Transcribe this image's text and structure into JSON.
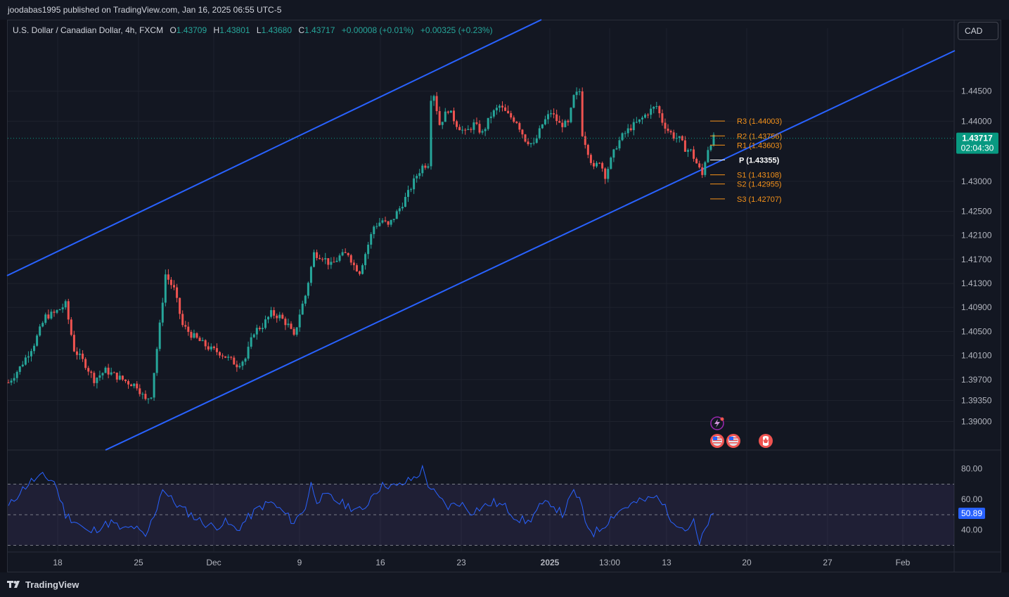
{
  "header": {
    "published": "joodabas1995 published on TradingView.com, Jan 16, 2025 06:55 UTC-5"
  },
  "legend": {
    "symbol": "U.S. Dollar / Canadian Dollar, 4h, FXCM",
    "open_label": "O",
    "open": "1.43709",
    "high_label": "H",
    "high": "1.43801",
    "low_label": "L",
    "low": "1.43680",
    "close_label": "C",
    "close": "1.43717",
    "change": "+0.00008 (+0.01%)",
    "change2": "+0.00325 (+0.23%)"
  },
  "currency_button": "CAD",
  "footer": {
    "logo_text": "TradingView"
  },
  "colors": {
    "up": "#26a69a",
    "down": "#ef5350",
    "channel": "#2962ff",
    "pivot_sr": "#f7931a",
    "pivot_p": "#ffffff",
    "rsi": "#2962ff",
    "rsi_band": "#7e57c2",
    "price_badge": "#089981"
  },
  "chart_data": {
    "type": "candlestick",
    "ylim": [
      1.3855,
      1.4555
    ],
    "yticks": [
      "1.44500",
      "1.44000",
      "1.43000",
      "1.42500",
      "1.42100",
      "1.41700",
      "1.41300",
      "1.40900",
      "1.40500",
      "1.40100",
      "1.39700",
      "1.39350",
      "1.39000"
    ],
    "xticks": [
      "18",
      "25",
      "Dec",
      "9",
      "16",
      "23",
      "2025",
      "13:00",
      "13",
      "20",
      "27",
      "Feb"
    ],
    "last_price": "1.43717",
    "countdown": "02:04:30",
    "price_path": [
      [
        0,
        1.3965
      ],
      [
        4,
        1.399
      ],
      [
        9,
        1.403
      ],
      [
        13,
        1.4075
      ],
      [
        16,
        1.408
      ],
      [
        20,
        1.4095
      ],
      [
        23,
        1.402
      ],
      [
        27,
        1.3995
      ],
      [
        30,
        1.397
      ],
      [
        34,
        1.3985
      ],
      [
        38,
        1.3975
      ],
      [
        42,
        1.3965
      ],
      [
        45,
        1.396
      ],
      [
        48,
        1.3935
      ],
      [
        50,
        1.3945
      ],
      [
        53,
        1.406
      ],
      [
        55,
        1.4145
      ],
      [
        58,
        1.412
      ],
      [
        61,
        1.406
      ],
      [
        64,
        1.4045
      ],
      [
        68,
        1.403
      ],
      [
        71,
        1.402
      ],
      [
        74,
        1.4015
      ],
      [
        77,
        1.4005
      ],
      [
        80,
        1.3995
      ],
      [
        83,
        1.4005
      ],
      [
        86,
        1.405
      ],
      [
        89,
        1.406
      ],
      [
        92,
        1.408
      ],
      [
        95,
        1.4075
      ],
      [
        98,
        1.406
      ],
      [
        100,
        1.404
      ],
      [
        102,
        1.408
      ],
      [
        104,
        1.411
      ],
      [
        107,
        1.418
      ],
      [
        110,
        1.4175
      ],
      [
        113,
        1.416
      ],
      [
        116,
        1.4175
      ],
      [
        119,
        1.418
      ],
      [
        121,
        1.416
      ],
      [
        123,
        1.415
      ],
      [
        125,
        1.418
      ],
      [
        128,
        1.4225
      ],
      [
        131,
        1.4235
      ],
      [
        133,
        1.4225
      ],
      [
        135,
        1.424
      ],
      [
        137,
        1.4255
      ],
      [
        140,
        1.428
      ],
      [
        143,
        1.431
      ],
      [
        145,
        1.4325
      ],
      [
        147,
        1.433
      ],
      [
        148,
        1.444
      ],
      [
        149,
        1.4445
      ],
      [
        151,
        1.4395
      ],
      [
        154,
        1.442
      ],
      [
        157,
        1.4395
      ],
      [
        160,
        1.438
      ],
      [
        163,
        1.4395
      ],
      [
        166,
        1.438
      ],
      [
        169,
        1.441
      ],
      [
        172,
        1.4425
      ],
      [
        175,
        1.441
      ],
      [
        178,
        1.44
      ],
      [
        181,
        1.437
      ],
      [
        184,
        1.436
      ],
      [
        187,
        1.4395
      ],
      [
        190,
        1.4415
      ],
      [
        193,
        1.4395
      ],
      [
        196,
        1.4395
      ],
      [
        198,
        1.444
      ],
      [
        200,
        1.445
      ],
      [
        201,
        1.438
      ],
      [
        203,
        1.435
      ],
      [
        205,
        1.432
      ],
      [
        207,
        1.4335
      ],
      [
        209,
        1.431
      ],
      [
        211,
        1.4335
      ],
      [
        213,
        1.436
      ],
      [
        215,
        1.4375
      ],
      [
        218,
        1.439
      ],
      [
        221,
        1.44
      ],
      [
        224,
        1.4415
      ],
      [
        227,
        1.4425
      ],
      [
        229,
        1.44
      ],
      [
        231,
        1.4385
      ],
      [
        233,
        1.4375
      ],
      [
        235,
        1.437
      ],
      [
        237,
        1.4355
      ],
      [
        239,
        1.435
      ],
      [
        241,
        1.433
      ],
      [
        243,
        1.431
      ],
      [
        244,
        1.4335
      ],
      [
        245,
        1.4355
      ],
      [
        246,
        1.4365
      ],
      [
        247,
        1.4372
      ]
    ],
    "pivots": [
      {
        "label": "R3",
        "value": 1.44003,
        "text": "R3 (1.44003)"
      },
      {
        "label": "R2",
        "value": 1.43756,
        "text": "R2 (1.43756)"
      },
      {
        "label": "R1",
        "value": 1.43603,
        "text": "R1 (1.43603)"
      },
      {
        "label": "P",
        "value": 1.43355,
        "text": "P (1.43355)"
      },
      {
        "label": "S1",
        "value": 1.43108,
        "text": "S1 (1.43108)"
      },
      {
        "label": "S2",
        "value": 1.42955,
        "text": "S2 (1.42955)"
      },
      {
        "label": "S3",
        "value": 1.42707,
        "text": "S3 (1.42707)"
      }
    ],
    "rsi": {
      "ylim": [
        27,
        90
      ],
      "yticks": [
        "80.00",
        "60.00",
        "40.00"
      ],
      "bands": [
        70,
        50,
        30
      ],
      "last": "50.89",
      "path": [
        [
          0,
          55
        ],
        [
          4,
          65
        ],
        [
          8,
          72
        ],
        [
          12,
          75
        ],
        [
          16,
          72
        ],
        [
          20,
          50
        ],
        [
          24,
          45
        ],
        [
          28,
          38
        ],
        [
          32,
          42
        ],
        [
          36,
          45
        ],
        [
          40,
          40
        ],
        [
          44,
          42
        ],
        [
          48,
          35
        ],
        [
          52,
          55
        ],
        [
          54,
          68
        ],
        [
          56,
          62
        ],
        [
          60,
          55
        ],
        [
          64,
          50
        ],
        [
          68,
          45
        ],
        [
          72,
          42
        ],
        [
          76,
          45
        ],
        [
          80,
          40
        ],
        [
          84,
          48
        ],
        [
          88,
          55
        ],
        [
          92,
          58
        ],
        [
          96,
          52
        ],
        [
          100,
          45
        ],
        [
          104,
          55
        ],
        [
          106,
          70
        ],
        [
          108,
          60
        ],
        [
          112,
          62
        ],
        [
          116,
          58
        ],
        [
          120,
          55
        ],
        [
          124,
          52
        ],
        [
          128,
          65
        ],
        [
          132,
          70
        ],
        [
          136,
          68
        ],
        [
          140,
          72
        ],
        [
          143,
          75
        ],
        [
          145,
          80
        ],
        [
          147,
          70
        ],
        [
          150,
          62
        ],
        [
          154,
          55
        ],
        [
          158,
          58
        ],
        [
          162,
          52
        ],
        [
          166,
          55
        ],
        [
          170,
          58
        ],
        [
          174,
          55
        ],
        [
          178,
          48
        ],
        [
          182,
          45
        ],
        [
          186,
          55
        ],
        [
          190,
          58
        ],
        [
          194,
          50
        ],
        [
          198,
          65
        ],
        [
          200,
          60
        ],
        [
          202,
          45
        ],
        [
          205,
          38
        ],
        [
          208,
          42
        ],
        [
          212,
          50
        ],
        [
          216,
          55
        ],
        [
          220,
          58
        ],
        [
          224,
          60
        ],
        [
          228,
          62
        ],
        [
          231,
          50
        ],
        [
          234,
          45
        ],
        [
          237,
          40
        ],
        [
          240,
          45
        ],
        [
          242,
          30
        ],
        [
          244,
          40
        ],
        [
          246,
          50
        ],
        [
          247,
          50.89
        ]
      ]
    }
  }
}
